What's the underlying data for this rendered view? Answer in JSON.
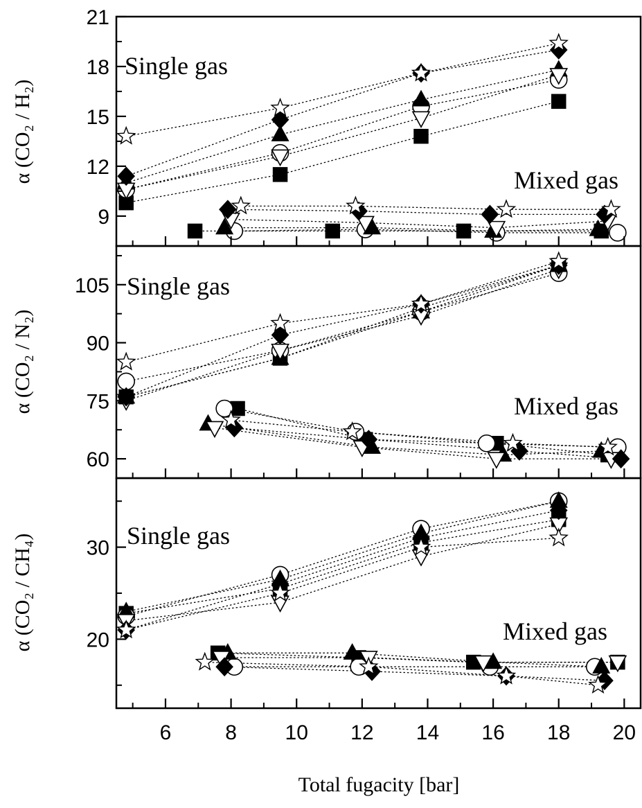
{
  "chart_data": {
    "type": "scatter",
    "xlabel": "Total fugacity [bar]",
    "xlim": [
      4.5,
      20.5
    ],
    "xticks": [
      "6",
      "8",
      "10",
      "12",
      "14",
      "16",
      "18",
      "20"
    ],
    "x_minor_tick_values": [
      5,
      7,
      9,
      11,
      13,
      15,
      17,
      19
    ],
    "marker_legend": {
      "filled-square": "■",
      "open-circle": "○",
      "filled-triangle-up": "▲",
      "open-triangle-down": "▽",
      "filled-diamond": "◆",
      "open-star": "☆"
    },
    "panels": [
      {
        "id": "h2",
        "ylabel": "α (CO₂ / H₂)",
        "ylim": [
          7.2,
          21
        ],
        "yticks": [
          "9",
          "12",
          "15",
          "18",
          "21"
        ],
        "y_minor_tick_values": [
          10.5,
          13.5,
          16.5,
          19.5
        ],
        "annotations": {
          "single": "Single  gas",
          "mixed": "Mixed  gas"
        },
        "single_gas": [
          {
            "marker": "filled-square",
            "points": [
              [
                4.8,
                9.8
              ],
              [
                9.5,
                11.5
              ],
              [
                13.8,
                13.8
              ],
              [
                18.0,
                15.9
              ]
            ]
          },
          {
            "marker": "open-circle",
            "points": [
              [
                4.8,
                10.6
              ],
              [
                9.5,
                12.8
              ],
              [
                13.8,
                15.6
              ],
              [
                18.0,
                17.2
              ]
            ]
          },
          {
            "marker": "filled-triangle-up",
            "points": [
              [
                4.8,
                11.0
              ],
              [
                9.5,
                13.9
              ],
              [
                13.8,
                16.0
              ],
              [
                18.0,
                17.8
              ]
            ]
          },
          {
            "marker": "open-triangle-down",
            "points": [
              [
                4.8,
                10.6
              ],
              [
                9.5,
                12.6
              ],
              [
                13.8,
                14.9
              ],
              [
                18.0,
                17.5
              ]
            ]
          },
          {
            "marker": "filled-diamond",
            "points": [
              [
                4.8,
                11.4
              ],
              [
                9.5,
                14.8
              ],
              [
                13.8,
                17.6
              ],
              [
                18.0,
                19.0
              ]
            ]
          },
          {
            "marker": "open-star",
            "points": [
              [
                4.8,
                13.8
              ],
              [
                9.5,
                15.5
              ],
              [
                13.8,
                17.6
              ],
              [
                18.0,
                19.4
              ]
            ]
          }
        ],
        "mixed_gas": [
          {
            "marker": "filled-square",
            "points": [
              [
                6.9,
                8.1
              ],
              [
                11.1,
                8.1
              ],
              [
                15.1,
                8.1
              ],
              [
                19.3,
                8.1
              ]
            ]
          },
          {
            "marker": "open-circle",
            "points": [
              [
                8.1,
                8.1
              ],
              [
                12.1,
                8.2
              ],
              [
                16.1,
                8.0
              ],
              [
                19.8,
                8.0
              ]
            ]
          },
          {
            "marker": "filled-triangle-up",
            "points": [
              [
                7.8,
                8.3
              ],
              [
                12.3,
                8.3
              ],
              [
                16.0,
                8.1
              ],
              [
                19.2,
                8.2
              ]
            ]
          },
          {
            "marker": "open-triangle-down",
            "points": [
              [
                8.0,
                8.8
              ],
              [
                12.1,
                8.6
              ],
              [
                16.1,
                8.3
              ],
              [
                19.5,
                8.7
              ]
            ]
          },
          {
            "marker": "filled-diamond",
            "points": [
              [
                7.9,
                9.4
              ],
              [
                11.9,
                9.3
              ],
              [
                15.9,
                9.1
              ],
              [
                19.4,
                9.1
              ]
            ]
          },
          {
            "marker": "open-star",
            "points": [
              [
                8.3,
                9.6
              ],
              [
                11.8,
                9.6
              ],
              [
                16.4,
                9.4
              ],
              [
                19.6,
                9.4
              ]
            ]
          }
        ]
      },
      {
        "id": "n2",
        "ylabel": "α (CO₂ / N₂)",
        "ylim": [
          55,
          115
        ],
        "yticks": [
          "60",
          "75",
          "90",
          "105"
        ],
        "y_minor_tick_values": [
          67.5,
          82.5,
          97.5,
          112.5
        ],
        "annotations": {
          "single": "Single  gas",
          "mixed": "Mixed  gas"
        },
        "single_gas": [
          {
            "marker": "filled-square",
            "points": [
              [
                4.8,
                76
              ],
              [
                9.5,
                86
              ],
              [
                13.8,
                99
              ],
              [
                18.0,
                110
              ]
            ]
          },
          {
            "marker": "open-circle",
            "points": [
              [
                4.8,
                80
              ],
              [
                9.5,
                88
              ],
              [
                13.8,
                98
              ],
              [
                18.0,
                108
              ]
            ]
          },
          {
            "marker": "filled-triangle-up",
            "points": [
              [
                4.8,
                76
              ],
              [
                9.5,
                86
              ],
              [
                13.8,
                98
              ],
              [
                18.0,
                110
              ]
            ]
          },
          {
            "marker": "open-triangle-down",
            "points": [
              [
                4.8,
                75
              ],
              [
                9.5,
                88
              ],
              [
                13.8,
                97
              ],
              [
                18.0,
                109
              ]
            ]
          },
          {
            "marker": "filled-diamond",
            "points": [
              [
                4.8,
                76
              ],
              [
                9.5,
                92
              ],
              [
                13.8,
                100
              ],
              [
                18.0,
                110
              ]
            ]
          },
          {
            "marker": "open-star",
            "points": [
              [
                4.8,
                85
              ],
              [
                9.5,
                95
              ],
              [
                13.8,
                100
              ],
              [
                18.0,
                111
              ]
            ]
          }
        ],
        "mixed_gas": [
          {
            "marker": "filled-square",
            "points": [
              [
                8.2,
                73
              ],
              [
                12.1,
                65
              ],
              [
                16.1,
                64
              ],
              [
                19.5,
                61
              ]
            ]
          },
          {
            "marker": "open-circle",
            "points": [
              [
                7.8,
                73
              ],
              [
                11.8,
                67
              ],
              [
                15.8,
                64
              ],
              [
                19.8,
                63
              ]
            ]
          },
          {
            "marker": "filled-triangle-up",
            "points": [
              [
                7.3,
                69
              ],
              [
                12.3,
                63
              ],
              [
                16.3,
                61
              ],
              [
                19.3,
                62
              ]
            ]
          },
          {
            "marker": "open-triangle-down",
            "points": [
              [
                7.5,
                68
              ],
              [
                12.0,
                63
              ],
              [
                16.1,
                60
              ],
              [
                19.6,
                60
              ]
            ]
          },
          {
            "marker": "filled-diamond",
            "points": [
              [
                8.1,
                68
              ],
              [
                12.2,
                65
              ],
              [
                16.8,
                62
              ],
              [
                19.9,
                60
              ]
            ]
          },
          {
            "marker": "open-star",
            "points": [
              [
                8.0,
                70
              ],
              [
                11.7,
                67
              ],
              [
                16.6,
                64
              ],
              [
                19.5,
                63
              ]
            ]
          }
        ]
      },
      {
        "id": "ch4",
        "ylabel": "α (CO₂ / CH₄)",
        "ylim": [
          12.5,
          37.5
        ],
        "yticks": [
          "20",
          "30"
        ],
        "y_minor_tick_values": [
          15,
          25,
          35
        ],
        "annotations": {
          "single": "Single  gas",
          "mixed": "Mixed  gas"
        },
        "single_gas": [
          {
            "marker": "filled-square",
            "points": [
              [
                4.8,
                22.8
              ],
              [
                9.5,
                25.5
              ],
              [
                13.8,
                30.5
              ],
              [
                18.0,
                33.0
              ]
            ]
          },
          {
            "marker": "open-circle",
            "points": [
              [
                4.8,
                22.5
              ],
              [
                9.5,
                27.0
              ],
              [
                13.8,
                32.0
              ],
              [
                18.0,
                35.0
              ]
            ]
          },
          {
            "marker": "filled-triangle-up",
            "points": [
              [
                4.8,
                23.0
              ],
              [
                9.5,
                26.5
              ],
              [
                13.8,
                31.5
              ],
              [
                18.0,
                35.0
              ]
            ]
          },
          {
            "marker": "open-triangle-down",
            "points": [
              [
                4.8,
                22.0
              ],
              [
                9.5,
                24.0
              ],
              [
                13.8,
                29.0
              ],
              [
                18.0,
                32.5
              ]
            ]
          },
          {
            "marker": "filled-diamond",
            "points": [
              [
                4.8,
                21.0
              ],
              [
                9.5,
                26.0
              ],
              [
                13.8,
                31.0
              ],
              [
                18.0,
                34.0
              ]
            ]
          },
          {
            "marker": "open-star",
            "points": [
              [
                4.8,
                21.0
              ],
              [
                9.5,
                25.0
              ],
              [
                13.8,
                30.0
              ],
              [
                18.0,
                31.0
              ]
            ]
          }
        ],
        "mixed_gas": [
          {
            "marker": "filled-square",
            "points": [
              [
                7.6,
                18.5
              ],
              [
                11.9,
                18.0
              ],
              [
                15.4,
                17.5
              ],
              [
                19.8,
                17.5
              ]
            ]
          },
          {
            "marker": "open-circle",
            "points": [
              [
                8.1,
                17.0
              ],
              [
                11.9,
                17.0
              ],
              [
                15.9,
                17.0
              ],
              [
                19.1,
                17.0
              ]
            ]
          },
          {
            "marker": "filled-triangle-up",
            "points": [
              [
                7.9,
                18.5
              ],
              [
                11.7,
                18.5
              ],
              [
                16.0,
                17.5
              ],
              [
                19.3,
                17.0
              ]
            ]
          },
          {
            "marker": "open-triangle-down",
            "points": [
              [
                7.7,
                18.0
              ],
              [
                12.2,
                18.0
              ],
              [
                15.7,
                17.5
              ],
              [
                19.8,
                17.5
              ]
            ]
          },
          {
            "marker": "filled-diamond",
            "points": [
              [
                7.8,
                17.0
              ],
              [
                12.3,
                16.5
              ],
              [
                16.4,
                16.0
              ],
              [
                19.4,
                15.5
              ]
            ]
          },
          {
            "marker": "open-star",
            "points": [
              [
                7.2,
                17.5
              ],
              [
                12.2,
                17.0
              ],
              [
                16.4,
                16.0
              ],
              [
                19.2,
                15.0
              ]
            ]
          }
        ]
      }
    ]
  }
}
